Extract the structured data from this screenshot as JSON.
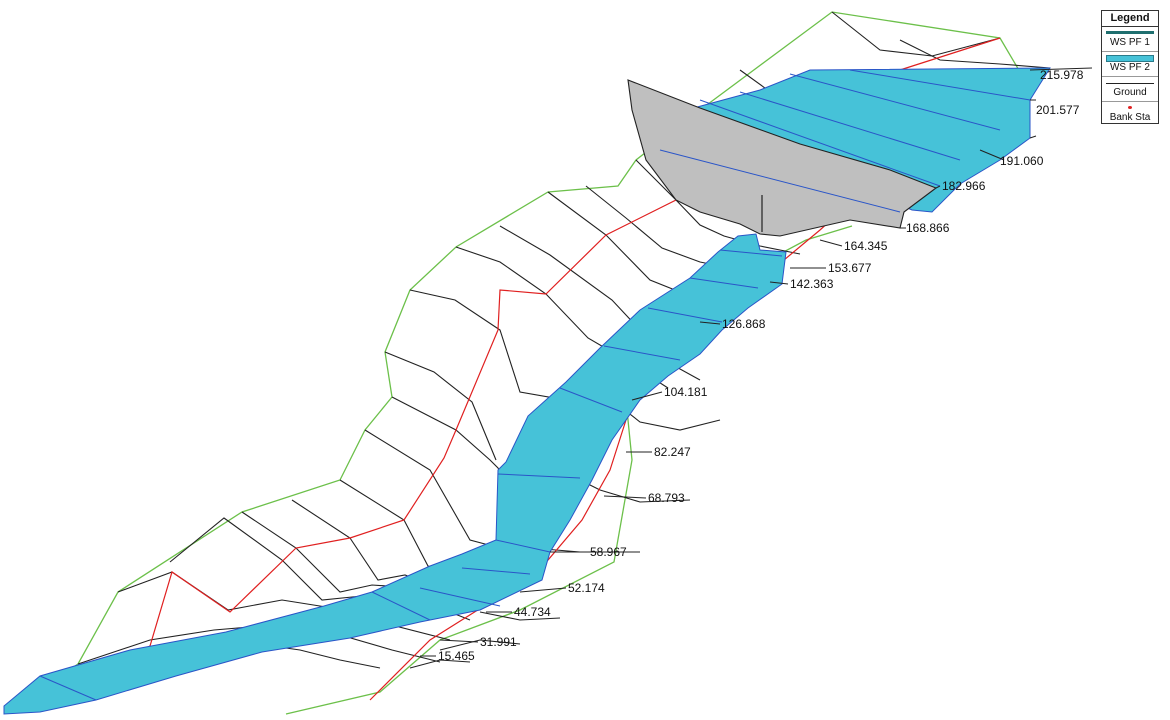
{
  "legend": {
    "title": "Legend",
    "items": [
      {
        "label": "WS PF 1",
        "icon": "ws-pf1-line",
        "color": "#1f6f6f"
      },
      {
        "label": "WS PF 2",
        "icon": "ws-pf2-fill",
        "color": "#46c2d8"
      },
      {
        "label": "Ground",
        "icon": "ground-line",
        "color": "#222222"
      },
      {
        "label": "Bank Sta",
        "icon": "bank-station-dot",
        "color": "#e02020"
      }
    ]
  },
  "river_stations": [
    "215.978",
    "201.577",
    "191.060",
    "182.966",
    "168.866",
    "164.345",
    "153.677",
    "142.363",
    "126.868",
    "104.181",
    "82.247",
    "68.793",
    "58.967",
    "52.174",
    "44.734",
    "31.991",
    "15.465"
  ],
  "colors": {
    "water": "#46c2d8",
    "water_edge": "#2a55c8",
    "bridge": "#bfbfbf",
    "ground": "#222222",
    "bank": "#e02020",
    "boundary": "#6cc04a"
  }
}
